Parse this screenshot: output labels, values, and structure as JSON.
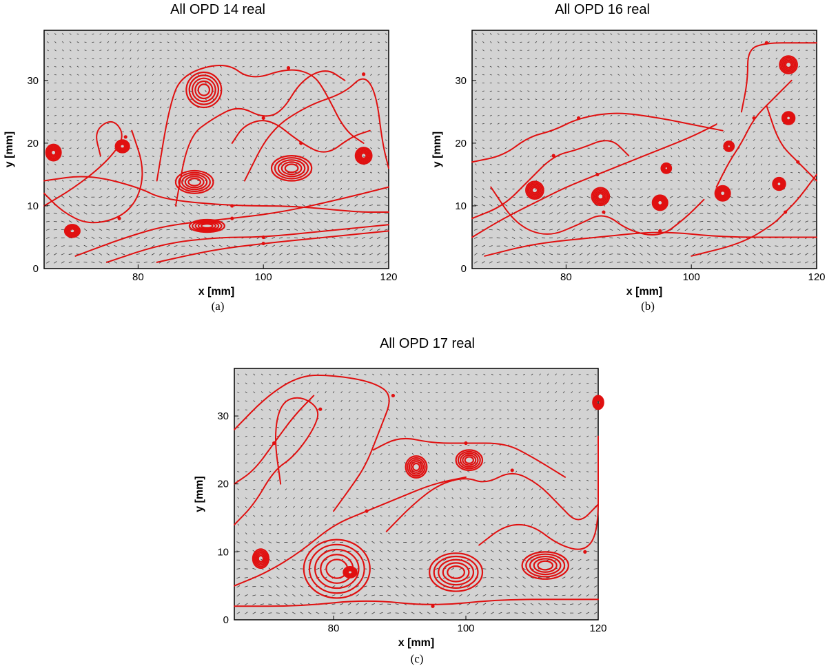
{
  "colors": {
    "background": "#d3d3d3",
    "streamline": "#e01010",
    "vector": "#3a3a3a"
  },
  "chart_data": [
    {
      "type": "streamline",
      "title": "All   OPD 14 real",
      "caption": "(a)",
      "xlabel": "x [mm]",
      "ylabel": "y [mm]",
      "xlim": [
        65,
        120
      ],
      "ylim": [
        0,
        38
      ],
      "xticks": [
        80,
        100,
        120
      ],
      "yticks": [
        0,
        10,
        20,
        30
      ],
      "grid": false,
      "vortices": [
        {
          "x": 66.5,
          "y": 18.5,
          "rx": 1.2,
          "ry": 1.3
        },
        {
          "x": 77.5,
          "y": 19.5,
          "rx": 1.1,
          "ry": 1.0
        },
        {
          "x": 89.0,
          "y": 13.8,
          "rx": 3.0,
          "ry": 1.8
        },
        {
          "x": 90.5,
          "y": 28.5,
          "rx": 2.8,
          "ry": 2.8
        },
        {
          "x": 104.5,
          "y": 16.0,
          "rx": 3.2,
          "ry": 2.0
        },
        {
          "x": 116.0,
          "y": 18.0,
          "rx": 1.3,
          "ry": 1.3
        },
        {
          "x": 91.0,
          "y": 6.8,
          "rx": 2.8,
          "ry": 1.0
        },
        {
          "x": 69.5,
          "y": 6.0,
          "rx": 1.2,
          "ry": 1.0
        }
      ],
      "streamlines": [
        [
          [
            65,
            10
          ],
          [
            70,
            13
          ],
          [
            75,
            17
          ],
          [
            78,
            21
          ],
          [
            76,
            24
          ],
          [
            73,
            22
          ],
          [
            74,
            18
          ]
        ],
        [
          [
            65,
            14
          ],
          [
            72,
            15
          ],
          [
            80,
            13
          ],
          [
            84,
            11
          ],
          [
            95,
            10
          ],
          [
            105,
            10
          ],
          [
            115,
            9
          ],
          [
            120,
            9
          ]
        ],
        [
          [
            70,
            2
          ],
          [
            78,
            5
          ],
          [
            85,
            7
          ],
          [
            95,
            8
          ],
          [
            103,
            9
          ],
          [
            112,
            11
          ],
          [
            120,
            13
          ]
        ],
        [
          [
            75,
            1
          ],
          [
            84,
            4
          ],
          [
            93,
            5
          ],
          [
            100,
            5
          ],
          [
            110,
            6
          ],
          [
            120,
            7
          ]
        ],
        [
          [
            83,
            1
          ],
          [
            92,
            3
          ],
          [
            100,
            4
          ],
          [
            110,
            5
          ],
          [
            120,
            6
          ]
        ],
        [
          [
            86,
            10
          ],
          [
            88,
            21
          ],
          [
            92,
            24
          ],
          [
            96,
            26
          ],
          [
            100,
            24
          ],
          [
            103,
            25
          ],
          [
            106,
            30
          ],
          [
            110,
            32
          ],
          [
            113,
            30
          ]
        ],
        [
          [
            83,
            14
          ],
          [
            85,
            26
          ],
          [
            87,
            31
          ],
          [
            94,
            33
          ],
          [
            98,
            30
          ],
          [
            104,
            32
          ],
          [
            108,
            31
          ],
          [
            110,
            28
          ],
          [
            113,
            22
          ],
          [
            116,
            20
          ]
        ],
        [
          [
            97,
            14
          ],
          [
            101,
            22
          ],
          [
            107,
            26
          ],
          [
            113,
            28
          ],
          [
            116,
            31
          ],
          [
            118,
            28
          ],
          [
            119,
            20
          ],
          [
            120,
            16
          ]
        ],
        [
          [
            65,
            12
          ],
          [
            68,
            9
          ],
          [
            72,
            7
          ],
          [
            77,
            8
          ],
          [
            80,
            11
          ],
          [
            81,
            16
          ],
          [
            79,
            22
          ]
        ],
        [
          [
            95,
            20
          ],
          [
            97,
            23
          ],
          [
            101,
            24
          ],
          [
            106,
            20
          ],
          [
            110,
            18
          ],
          [
            114,
            21
          ],
          [
            117,
            22
          ]
        ]
      ]
    },
    {
      "type": "streamline",
      "title": "All   OPD 16 real",
      "caption": "(b)",
      "xlabel": "x [mm]",
      "ylabel": "y [mm]",
      "xlim": [
        65,
        120
      ],
      "ylim": [
        0,
        38
      ],
      "xticks": [
        80,
        100,
        120
      ],
      "yticks": [
        0,
        10,
        20,
        30
      ],
      "grid": false,
      "vortices": [
        {
          "x": 75.0,
          "y": 12.5,
          "rx": 1.4,
          "ry": 1.4
        },
        {
          "x": 85.5,
          "y": 11.5,
          "rx": 1.4,
          "ry": 1.4
        },
        {
          "x": 95.0,
          "y": 10.5,
          "rx": 1.2,
          "ry": 1.2
        },
        {
          "x": 105.0,
          "y": 12.0,
          "rx": 1.2,
          "ry": 1.2
        },
        {
          "x": 115.5,
          "y": 32.5,
          "rx": 1.4,
          "ry": 1.4
        },
        {
          "x": 115.5,
          "y": 24.0,
          "rx": 1.0,
          "ry": 1.0
        },
        {
          "x": 114.0,
          "y": 13.5,
          "rx": 1.0,
          "ry": 1.0
        },
        {
          "x": 106.0,
          "y": 19.5,
          "rx": 0.8,
          "ry": 0.8
        },
        {
          "x": 96.0,
          "y": 16.0,
          "rx": 0.8,
          "ry": 0.8
        }
      ],
      "streamlines": [
        [
          [
            65,
            17
          ],
          [
            70,
            18
          ],
          [
            74,
            21
          ],
          [
            78,
            22
          ],
          [
            82,
            24
          ],
          [
            88,
            25
          ],
          [
            95,
            24
          ],
          [
            100,
            23
          ],
          [
            105,
            22
          ]
        ],
        [
          [
            65,
            8
          ],
          [
            70,
            10
          ],
          [
            74,
            14
          ],
          [
            78,
            18
          ],
          [
            82,
            19
          ],
          [
            87,
            21
          ],
          [
            90,
            18
          ]
        ],
        [
          [
            67,
            2
          ],
          [
            75,
            4
          ],
          [
            85,
            5
          ],
          [
            95,
            6
          ],
          [
            105,
            5
          ],
          [
            115,
            5
          ],
          [
            120,
            5
          ]
        ],
        [
          [
            65,
            5
          ],
          [
            70,
            8
          ],
          [
            76,
            11
          ],
          [
            80,
            13
          ],
          [
            85,
            15
          ],
          [
            90,
            17
          ],
          [
            95,
            19
          ],
          [
            100,
            21
          ],
          [
            104,
            23
          ]
        ],
        [
          [
            100,
            2
          ],
          [
            108,
            4
          ],
          [
            113,
            7
          ],
          [
            115,
            9
          ],
          [
            117,
            11
          ],
          [
            120,
            15
          ]
        ],
        [
          [
            108,
            25
          ],
          [
            109,
            30
          ],
          [
            109,
            35
          ],
          [
            112,
            36
          ],
          [
            117,
            36
          ],
          [
            120,
            36
          ]
        ],
        [
          [
            104,
            13
          ],
          [
            106,
            17
          ],
          [
            108,
            20
          ],
          [
            110,
            24
          ],
          [
            113,
            27
          ],
          [
            116,
            30
          ]
        ],
        [
          [
            68,
            13
          ],
          [
            72,
            7
          ],
          [
            77,
            5
          ],
          [
            82,
            7
          ],
          [
            86,
            9
          ],
          [
            90,
            6
          ],
          [
            95,
            5
          ],
          [
            99,
            8
          ],
          [
            102,
            11
          ]
        ],
        [
          [
            112,
            26
          ],
          [
            114,
            20
          ],
          [
            117,
            17
          ],
          [
            120,
            14
          ]
        ]
      ]
    },
    {
      "type": "streamline",
      "title": "All   OPD 17 real",
      "caption": "(c)",
      "xlabel": "x [mm]",
      "ylabel": "y [mm]",
      "xlim": [
        65,
        120
      ],
      "ylim": [
        0,
        37
      ],
      "xticks": [
        80,
        100,
        120
      ],
      "yticks": [
        0,
        10,
        20,
        30
      ],
      "grid": false,
      "vortices": [
        {
          "x": 69.0,
          "y": 9.0,
          "rx": 1.2,
          "ry": 1.4
        },
        {
          "x": 80.5,
          "y": 7.5,
          "rx": 5.0,
          "ry": 4.3
        },
        {
          "x": 82.5,
          "y": 7.0,
          "rx": 1.0,
          "ry": 0.8
        },
        {
          "x": 98.5,
          "y": 7.0,
          "rx": 4.0,
          "ry": 2.8
        },
        {
          "x": 112.0,
          "y": 8.0,
          "rx": 3.5,
          "ry": 2.0
        },
        {
          "x": 92.5,
          "y": 22.5,
          "rx": 1.6,
          "ry": 1.6
        },
        {
          "x": 100.5,
          "y": 23.5,
          "rx": 2.0,
          "ry": 1.5
        },
        {
          "x": 120.0,
          "y": 32.0,
          "rx": 0.8,
          "ry": 1.0
        }
      ],
      "streamlines": [
        [
          [
            65,
            28
          ],
          [
            70,
            33
          ],
          [
            75,
            36
          ],
          [
            80,
            36
          ],
          [
            86,
            35
          ],
          [
            89,
            33
          ],
          [
            87,
            28
          ],
          [
            85,
            23
          ],
          [
            83,
            20
          ],
          [
            80,
            16
          ]
        ],
        [
          [
            65,
            14
          ],
          [
            68,
            17
          ],
          [
            71,
            22
          ],
          [
            74,
            24
          ],
          [
            77,
            28
          ],
          [
            78,
            31
          ],
          [
            75,
            33
          ],
          [
            72,
            32
          ],
          [
            71,
            27
          ],
          [
            72,
            20
          ]
        ],
        [
          [
            65,
            2
          ],
          [
            75,
            2
          ],
          [
            85,
            3
          ],
          [
            95,
            2
          ],
          [
            105,
            3
          ],
          [
            115,
            3
          ],
          [
            120,
            3
          ]
        ],
        [
          [
            65,
            5
          ],
          [
            70,
            7
          ],
          [
            75,
            10
          ],
          [
            80,
            14
          ],
          [
            85,
            16
          ],
          [
            90,
            18
          ],
          [
            95,
            20
          ],
          [
            100,
            21
          ]
        ],
        [
          [
            88,
            13
          ],
          [
            92,
            17
          ],
          [
            96,
            20
          ],
          [
            100,
            21
          ],
          [
            103,
            20
          ],
          [
            107,
            22
          ],
          [
            111,
            20
          ],
          [
            114,
            17
          ],
          [
            117,
            14
          ],
          [
            120,
            17
          ]
        ],
        [
          [
            102,
            11
          ],
          [
            106,
            14
          ],
          [
            110,
            14
          ],
          [
            114,
            11
          ],
          [
            118,
            10
          ],
          [
            120,
            13
          ],
          [
            120,
            22
          ],
          [
            120,
            27
          ]
        ],
        [
          [
            86,
            25
          ],
          [
            90,
            27
          ],
          [
            95,
            26
          ],
          [
            100,
            26
          ],
          [
            106,
            26
          ],
          [
            110,
            24
          ],
          [
            115,
            21
          ]
        ],
        [
          [
            65,
            20
          ],
          [
            68,
            22
          ],
          [
            71,
            26
          ],
          [
            74,
            30
          ],
          [
            77,
            33
          ]
        ]
      ]
    }
  ]
}
